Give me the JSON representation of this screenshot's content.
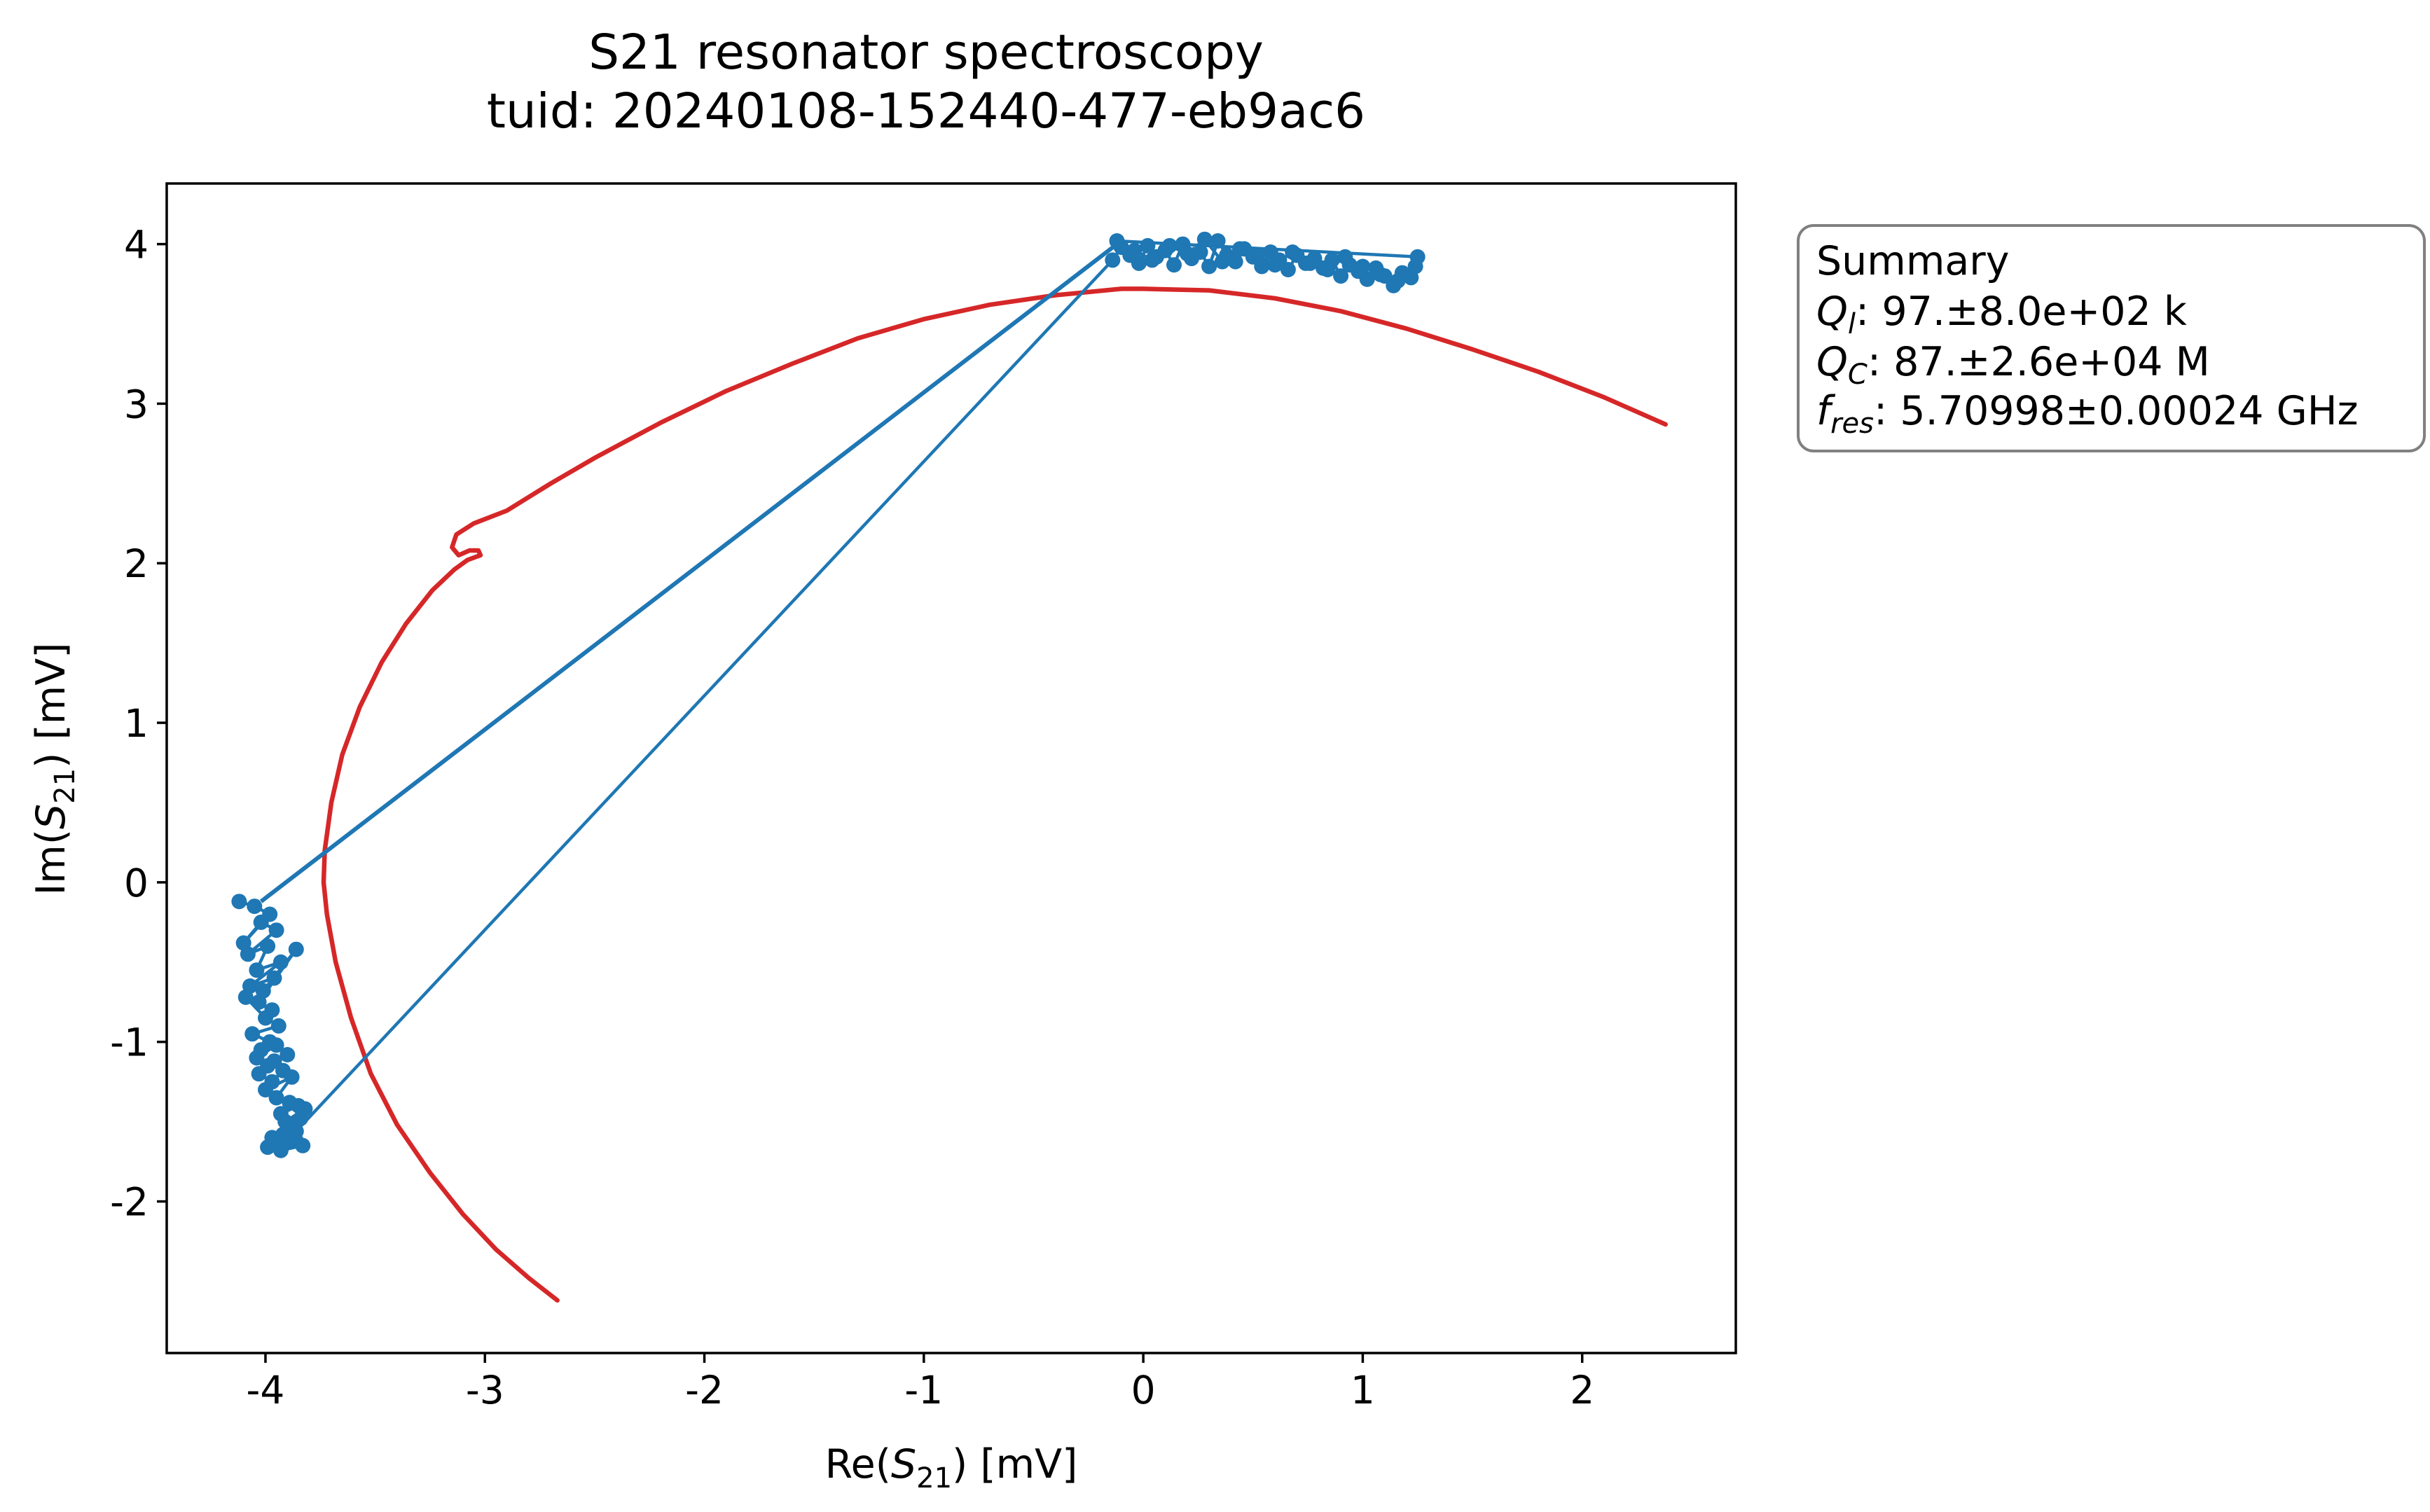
{
  "chart_data": {
    "type": "scatter",
    "title": "S21 resonator spectroscopy",
    "subtitle": "tuid: 20240108-152440-477-eb9ac6",
    "xlabel": {
      "prefix": "Re(",
      "symbol": "S",
      "sub": "21",
      "suffix": ") [mV]"
    },
    "ylabel": {
      "prefix": "Im(",
      "symbol": "S",
      "sub": "21",
      "suffix": ") [mV]"
    },
    "xlim": [
      -4.45,
      2.7
    ],
    "ylim": [
      -2.95,
      4.38
    ],
    "xticks": [
      {
        "value": -4,
        "label": "-4"
      },
      {
        "value": -3,
        "label": "-3"
      },
      {
        "value": -2,
        "label": "-2"
      },
      {
        "value": -1,
        "label": "-1"
      },
      {
        "value": 0,
        "label": "0"
      },
      {
        "value": 1,
        "label": "1"
      },
      {
        "value": 2,
        "label": "2"
      }
    ],
    "yticks": [
      {
        "value": 4,
        "label": "4"
      },
      {
        "value": 3,
        "label": "3"
      },
      {
        "value": 2,
        "label": "2"
      },
      {
        "value": 1,
        "label": "1"
      },
      {
        "value": 0,
        "label": "0"
      },
      {
        "value": -1,
        "label": "-1"
      },
      {
        "value": -2,
        "label": "-2"
      }
    ],
    "grid": false,
    "summary": {
      "heading": "Summary",
      "lines": [
        {
          "symbol": "Q",
          "sub": "l",
          "text": ": 97.±8.0e+02 k"
        },
        {
          "symbol": "Q",
          "sub": "C",
          "text": ": 87.±2.6e+04 M"
        },
        {
          "symbol": "f",
          "sub": "res",
          "text": ": 5.70998±0.00024 GHz"
        }
      ]
    },
    "series": [
      {
        "kind": "data",
        "color": "#1f77b4",
        "x": [
          -4.12,
          -4.05,
          -3.98,
          -4.1,
          -4.02,
          -3.95,
          -4.08,
          -3.99,
          -4.04,
          -3.93,
          -4.07,
          -3.96,
          -4.01,
          -3.86,
          -4.03,
          -3.97,
          -4.09,
          -4.0,
          -3.94,
          -4.06,
          -3.98,
          -4.02,
          -3.95,
          -4.04,
          -3.99,
          -3.96,
          -3.9,
          -4.03,
          -3.97,
          -3.92,
          -4.0,
          -3.88,
          -3.95,
          -3.85,
          -3.93,
          -3.89,
          -3.82,
          -3.91,
          -3.87,
          -3.84,
          -3.92,
          -3.86,
          -3.97,
          -3.88,
          -3.83,
          -3.93,
          -3.87,
          -3.99,
          -3.91,
          -3.86,
          -0.14,
          -0.1,
          -0.06,
          -0.02,
          0.02,
          0.06,
          0.1,
          0.14,
          0.18,
          0.22,
          0.26,
          0.3,
          0.34,
          0.38,
          0.42,
          0.46,
          0.5,
          0.54,
          0.58,
          0.62,
          0.66,
          0.7,
          0.74,
          0.78,
          0.82,
          0.86,
          0.9,
          0.94,
          0.98,
          1.02,
          1.06,
          1.1,
          1.14,
          1.18,
          1.22,
          1.25,
          -0.12,
          -0.04,
          0.04,
          0.12,
          0.2,
          0.28,
          0.36,
          0.44,
          0.52,
          0.6,
          0.68,
          0.76,
          0.84,
          0.92,
          1.0,
          1.08,
          1.16,
          1.24
        ],
        "y": [
          -0.12,
          -0.15,
          -0.2,
          -0.38,
          -0.25,
          -0.3,
          -0.45,
          -0.4,
          -0.55,
          -0.5,
          -0.65,
          -0.6,
          -0.68,
          -0.42,
          -0.75,
          -0.8,
          -0.72,
          -0.85,
          -0.9,
          -0.95,
          -1.0,
          -1.05,
          -1.02,
          -1.1,
          -1.15,
          -1.12,
          -1.08,
          -1.2,
          -1.25,
          -1.18,
          -1.3,
          -1.22,
          -1.35,
          -1.4,
          -1.45,
          -1.38,
          -1.42,
          -1.5,
          -1.55,
          -1.48,
          -1.58,
          -1.62,
          -1.6,
          -1.52,
          -1.65,
          -1.68,
          -1.58,
          -1.66,
          -1.63,
          -1.56,
          3.9,
          3.98,
          3.93,
          3.88,
          3.99,
          3.92,
          3.96,
          3.87,
          4.0,
          3.91,
          3.95,
          3.86,
          4.02,
          3.93,
          3.89,
          3.97,
          3.92,
          3.86,
          3.95,
          3.9,
          3.84,
          3.93,
          3.88,
          3.91,
          3.85,
          3.9,
          3.8,
          3.87,
          3.83,
          3.78,
          3.85,
          3.8,
          3.74,
          3.82,
          3.79,
          3.92,
          4.02,
          3.96,
          3.9,
          3.99,
          3.94,
          4.03,
          3.89,
          3.97,
          3.93,
          3.87,
          3.95,
          3.88,
          3.84,
          3.92,
          3.86,
          3.81,
          3.77,
          3.86
        ]
      },
      {
        "kind": "data-connector",
        "color": "#1f77b4",
        "x": [
          -4.02,
          -0.12
        ],
        "y": [
          -0.12,
          4.0
        ]
      },
      {
        "kind": "fit",
        "color": "#d62728",
        "x": [
          -2.67,
          -2.8,
          -2.95,
          -3.1,
          -3.25,
          -3.4,
          -3.52,
          -3.61,
          -3.68,
          -3.72,
          -3.735,
          -3.73,
          -3.7,
          -3.65,
          -3.57,
          -3.47,
          -3.36,
          -3.24,
          -3.14,
          -3.08,
          -3.04,
          -3.02,
          -3.03,
          -3.07,
          -3.12,
          -3.15,
          -3.13,
          -3.05,
          -2.9,
          -2.7,
          -2.5,
          -2.2,
          -1.9,
          -1.6,
          -1.3,
          -1.0,
          -0.7,
          -0.4,
          -0.1,
          0.0,
          0.3,
          0.6,
          0.9,
          1.2,
          1.5,
          1.8,
          2.1,
          2.38
        ],
        "y": [
          -2.62,
          -2.48,
          -2.3,
          -2.08,
          -1.82,
          -1.52,
          -1.2,
          -0.85,
          -0.5,
          -0.2,
          0.0,
          0.2,
          0.5,
          0.8,
          1.1,
          1.38,
          1.62,
          1.83,
          1.96,
          2.02,
          2.04,
          2.05,
          2.08,
          2.08,
          2.05,
          2.1,
          2.18,
          2.25,
          2.33,
          2.5,
          2.66,
          2.88,
          3.08,
          3.25,
          3.41,
          3.53,
          3.62,
          3.68,
          3.72,
          3.72,
          3.71,
          3.66,
          3.58,
          3.47,
          3.34,
          3.2,
          3.04,
          2.87
        ]
      }
    ]
  }
}
